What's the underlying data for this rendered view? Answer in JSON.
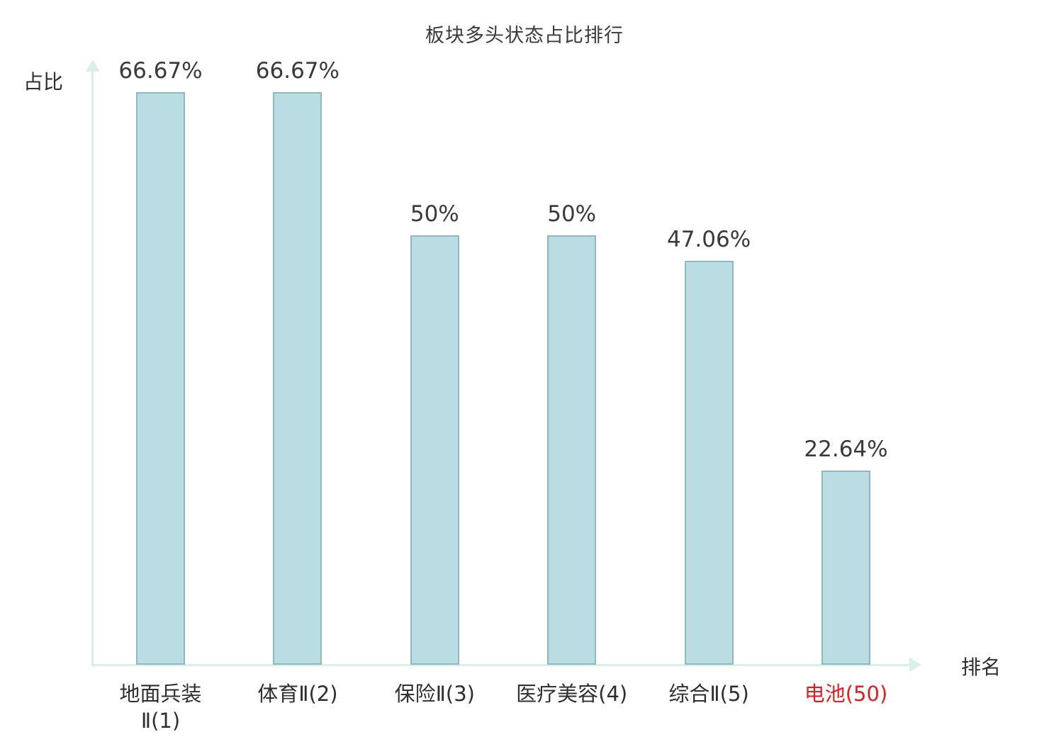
{
  "chart_data": {
    "type": "bar",
    "title": "板块多头状态占比排行",
    "ylabel": "占比",
    "xlabel": "排名",
    "categories": [
      "地面兵装Ⅱ(1)",
      "体育Ⅱ(2)",
      "保险Ⅱ(3)",
      "医疗美容(4)",
      "综合Ⅱ(5)",
      "电池(50)"
    ],
    "category_label_lines": [
      [
        "地面兵装",
        "Ⅱ(1)"
      ],
      [
        "体育Ⅱ(2)"
      ],
      [
        "保险Ⅱ(3)"
      ],
      [
        "医疗美容(4)"
      ],
      [
        "综合Ⅱ(5)"
      ],
      [
        "电池(50)"
      ]
    ],
    "values": [
      66.67,
      66.67,
      50,
      50,
      47.06,
      22.64
    ],
    "value_labels": [
      "66.67%",
      "66.67%",
      "50%",
      "50%",
      "47.06%",
      "22.64%"
    ],
    "ylim": [
      0,
      70
    ],
    "grid": false,
    "legend": false,
    "highlight_index": 5,
    "colors": {
      "bar_fill": "#b9dde2",
      "bar_border": "#8fb9c0",
      "axis": "#d9f0e4",
      "text": "#2f2f2f",
      "highlight_text": "#e02020"
    }
  }
}
